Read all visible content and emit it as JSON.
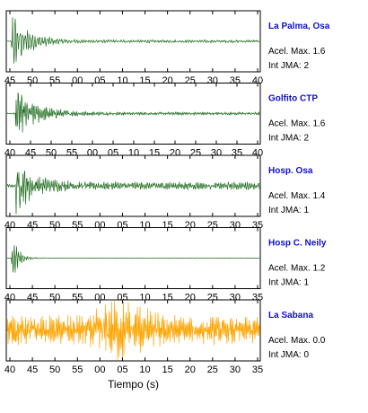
{
  "chart_data": {
    "type": "line",
    "xlabel": "Tiempo (s)",
    "panels": [
      {
        "station": "La Palma, Osa",
        "acel_label": "Acel. Max. 1.6",
        "int_label": "Int JMA: 2",
        "color": "#1d6b1d",
        "tick_labels": [
          "45",
          "50",
          "55",
          "00",
          "05",
          "10",
          "15",
          "20",
          "25",
          "30",
          "35",
          "40"
        ],
        "envelope": {
          "onset_s": 1,
          "peak": 1.0,
          "decay": 0.045,
          "floor": 0.05,
          "freq": 1.15
        }
      },
      {
        "station": "Golfito CTP",
        "acel_label": "Acel. Max. 1.6",
        "int_label": "Int JMA: 2",
        "color": "#1d6b1d",
        "tick_labels": [
          "40",
          "45",
          "50",
          "55",
          "00",
          "05",
          "10",
          "15",
          "20",
          "25",
          "30",
          "35",
          "40"
        ],
        "envelope": {
          "onset_s": 2,
          "peak": 0.85,
          "decay": 0.035,
          "floor": 0.05,
          "freq": 1.6
        }
      },
      {
        "station": "Hosp. Osa",
        "acel_label": "Acel. Max. 1.4",
        "int_label": "Int JMA: 1",
        "color": "#1d6b1d",
        "tick_labels": [
          "40",
          "45",
          "50",
          "55",
          "00",
          "05",
          "10",
          "15",
          "20",
          "25",
          "30",
          "35"
        ],
        "envelope": {
          "onset_s": 2,
          "peak": 0.9,
          "decay": 0.04,
          "floor": 0.12,
          "freq": 1.5
        }
      },
      {
        "station": "Hosp C. Neily",
        "acel_label": "Acel. Max. 1.2",
        "int_label": "Int JMA: 1",
        "color": "#1d6b1d",
        "tick_labels": [
          "40",
          "45",
          "50",
          "55",
          "00",
          "05",
          "10",
          "15",
          "20",
          "25",
          "30",
          "35"
        ],
        "envelope": {
          "onset_s": 1,
          "peak": 0.95,
          "decay": 0.12,
          "floor": 0.01,
          "freq": 1.3
        }
      },
      {
        "station": "La Sabana",
        "acel_label": "Acel. Max. 0.0",
        "int_label": "Int JMA: 0",
        "color": "#ffa500",
        "tick_labels": [
          "40",
          "45",
          "50",
          "55",
          "00",
          "05",
          "10",
          "15",
          "20",
          "25",
          "30",
          "35"
        ],
        "envelope": {
          "onset_s": 0,
          "peak": 0.45,
          "decay": 0.0,
          "floor": 0.35,
          "freq": 2.2,
          "burst_center_s": 27,
          "burst_amp": 0.55
        }
      }
    ]
  }
}
